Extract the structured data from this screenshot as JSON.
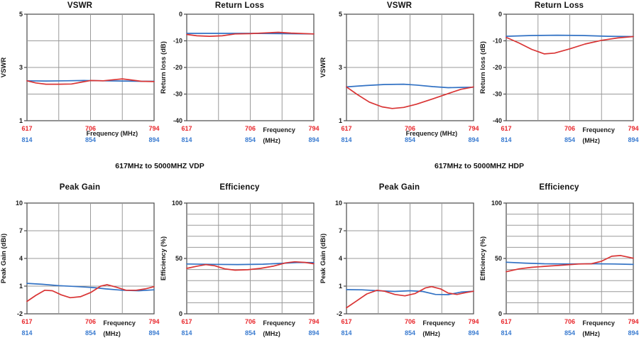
{
  "figure": {
    "description_labels": []
  },
  "captions": [
    "617MHz to 5000MHZ VDP",
    "617MHz to 5000MHZ HDP"
  ],
  "colors": {
    "red_series": "#d93434",
    "blue_series": "#3272c4",
    "red_tick_label": "#e8262b",
    "blue_tick_label": "#3a7bd0",
    "grid": "#9a9a9a",
    "axis_border": "#4a4a4a",
    "text": "#1b1b1b"
  },
  "x_axis": {
    "red_ticks": [
      "617",
      "706",
      "794"
    ],
    "blue_ticks": [
      "814",
      "854",
      "894"
    ]
  },
  "chart_data": [
    {
      "type": "line",
      "slug": "vswr-vdp",
      "title": "VSWR",
      "ylabel": "VSWR",
      "ylim": [
        1,
        5
      ],
      "yticks": [
        1,
        3,
        5
      ],
      "ygrid_step": 1,
      "grid": true,
      "legend": "none",
      "xlabel_lines": [
        "Frequency (MHz)"
      ],
      "series": [
        {
          "id": "blue",
          "points": [
            [
              0,
              2.5
            ],
            [
              0.15,
              2.49
            ],
            [
              0.3,
              2.5
            ],
            [
              0.45,
              2.51
            ],
            [
              0.6,
              2.5
            ],
            [
              0.75,
              2.49
            ],
            [
              0.9,
              2.48
            ],
            [
              1,
              2.48
            ]
          ]
        },
        {
          "id": "red",
          "points": [
            [
              0,
              2.5
            ],
            [
              0.07,
              2.42
            ],
            [
              0.15,
              2.37
            ],
            [
              0.25,
              2.37
            ],
            [
              0.35,
              2.38
            ],
            [
              0.42,
              2.44
            ],
            [
              0.5,
              2.51
            ],
            [
              0.6,
              2.5
            ],
            [
              0.68,
              2.54
            ],
            [
              0.75,
              2.57
            ],
            [
              0.82,
              2.53
            ],
            [
              0.9,
              2.48
            ],
            [
              1,
              2.47
            ]
          ]
        }
      ]
    },
    {
      "type": "line",
      "slug": "return-loss-vdp",
      "title": "Return Loss",
      "ylabel": "Return loss (dB)",
      "ylim": [
        -40,
        0
      ],
      "yticks": [
        0,
        -10,
        -20,
        -30,
        -40
      ],
      "ygrid_step": 10,
      "grid": true,
      "legend": "none",
      "xlabel_lines": [
        "Frequency",
        "(MHz)"
      ],
      "series": [
        {
          "id": "blue",
          "points": [
            [
              0,
              -7.2
            ],
            [
              0.25,
              -7.2
            ],
            [
              0.5,
              -7.2
            ],
            [
              0.75,
              -7.3
            ],
            [
              1,
              -7.4
            ]
          ]
        },
        {
          "id": "red",
          "points": [
            [
              0,
              -7.6
            ],
            [
              0.08,
              -8.1
            ],
            [
              0.18,
              -8.3
            ],
            [
              0.28,
              -8.1
            ],
            [
              0.38,
              -7.4
            ],
            [
              0.5,
              -7.3
            ],
            [
              0.62,
              -7.0
            ],
            [
              0.72,
              -6.8
            ],
            [
              0.82,
              -7.1
            ],
            [
              1,
              -7.4
            ]
          ]
        }
      ]
    },
    {
      "type": "line",
      "slug": "vswr-hdp",
      "title": "VSWR",
      "ylabel": "VSWR",
      "ylim": [
        1,
        5
      ],
      "yticks": [
        1,
        3,
        5
      ],
      "ygrid_step": 1,
      "grid": true,
      "legend": "none",
      "xlabel_lines": [
        "Frequency (MHz)"
      ],
      "series": [
        {
          "id": "blue",
          "points": [
            [
              0,
              2.27
            ],
            [
              0.15,
              2.32
            ],
            [
              0.3,
              2.36
            ],
            [
              0.45,
              2.37
            ],
            [
              0.55,
              2.34
            ],
            [
              0.68,
              2.28
            ],
            [
              0.8,
              2.24
            ],
            [
              0.9,
              2.25
            ],
            [
              1,
              2.26
            ]
          ]
        },
        {
          "id": "red",
          "points": [
            [
              0,
              2.27
            ],
            [
              0.08,
              2.0
            ],
            [
              0.18,
              1.7
            ],
            [
              0.28,
              1.52
            ],
            [
              0.36,
              1.46
            ],
            [
              0.45,
              1.5
            ],
            [
              0.55,
              1.62
            ],
            [
              0.68,
              1.82
            ],
            [
              0.8,
              2.02
            ],
            [
              0.9,
              2.18
            ],
            [
              1,
              2.27
            ]
          ]
        }
      ]
    },
    {
      "type": "line",
      "slug": "return-loss-hdp",
      "title": "Return Loss",
      "ylabel": "Return loss (dB)",
      "ylim": [
        -40,
        0
      ],
      "yticks": [
        0,
        -10,
        -20,
        -30,
        -40
      ],
      "ygrid_step": 10,
      "grid": true,
      "legend": "none",
      "xlabel_lines": [
        "Frequency",
        "(MHz)"
      ],
      "series": [
        {
          "id": "blue",
          "points": [
            [
              0,
              -8.3
            ],
            [
              0.2,
              -8.0
            ],
            [
              0.4,
              -7.9
            ],
            [
              0.6,
              -8.0
            ],
            [
              0.8,
              -8.3
            ],
            [
              1,
              -8.4
            ]
          ]
        },
        {
          "id": "red",
          "points": [
            [
              0,
              -8.7
            ],
            [
              0.1,
              -10.8
            ],
            [
              0.2,
              -13.2
            ],
            [
              0.3,
              -14.9
            ],
            [
              0.38,
              -14.6
            ],
            [
              0.5,
              -13.0
            ],
            [
              0.62,
              -11.2
            ],
            [
              0.75,
              -9.8
            ],
            [
              0.88,
              -8.9
            ],
            [
              1,
              -8.4
            ]
          ]
        }
      ]
    },
    {
      "type": "line",
      "slug": "peak-gain-vdp",
      "title": "Peak Gain",
      "ylabel": "Peak Gain (dBi)",
      "ylim": [
        -2,
        10
      ],
      "yticks": [
        -2,
        1,
        4,
        7,
        10
      ],
      "ygrid_step": 3,
      "grid": true,
      "legend": "none",
      "xlabel_lines": [
        "Frequency",
        "(MHz)"
      ],
      "series": [
        {
          "id": "blue",
          "points": [
            [
              0,
              1.3
            ],
            [
              0.12,
              1.2
            ],
            [
              0.25,
              1.05
            ],
            [
              0.4,
              0.95
            ],
            [
              0.52,
              0.85
            ],
            [
              0.62,
              0.7
            ],
            [
              0.75,
              0.55
            ],
            [
              0.88,
              0.5
            ],
            [
              1,
              0.6
            ]
          ]
        },
        {
          "id": "red",
          "points": [
            [
              0,
              -0.65
            ],
            [
              0.07,
              0.0
            ],
            [
              0.14,
              0.55
            ],
            [
              0.2,
              0.5
            ],
            [
              0.27,
              0.05
            ],
            [
              0.34,
              -0.25
            ],
            [
              0.42,
              -0.15
            ],
            [
              0.5,
              0.3
            ],
            [
              0.58,
              1.0
            ],
            [
              0.63,
              1.15
            ],
            [
              0.7,
              0.9
            ],
            [
              0.78,
              0.55
            ],
            [
              0.86,
              0.55
            ],
            [
              0.93,
              0.7
            ],
            [
              1,
              0.95
            ]
          ]
        }
      ]
    },
    {
      "type": "line",
      "slug": "efficiency-vdp",
      "title": "Efficiency",
      "ylabel": "Efficiency (%)",
      "ylim": [
        0,
        100
      ],
      "yticks": [
        0,
        50,
        100
      ],
      "ygrid_step": 10,
      "grid": true,
      "legend": "none",
      "xlabel_lines": [
        "Frequency",
        "(MHz)"
      ],
      "series": [
        {
          "id": "blue",
          "points": [
            [
              0,
              45
            ],
            [
              0.2,
              44.7
            ],
            [
              0.4,
              44.5
            ],
            [
              0.6,
              44.8
            ],
            [
              0.75,
              45.6
            ],
            [
              0.88,
              46.4
            ],
            [
              1,
              46.3
            ]
          ]
        },
        {
          "id": "red",
          "points": [
            [
              0,
              41
            ],
            [
              0.08,
              43
            ],
            [
              0.15,
              44.4
            ],
            [
              0.22,
              43.4
            ],
            [
              0.3,
              40.6
            ],
            [
              0.38,
              39.4
            ],
            [
              0.48,
              39.8
            ],
            [
              0.58,
              41
            ],
            [
              0.68,
              43
            ],
            [
              0.78,
              46
            ],
            [
              0.85,
              47
            ],
            [
              0.93,
              46.4
            ],
            [
              1,
              45.2
            ]
          ]
        }
      ]
    },
    {
      "type": "line",
      "slug": "peak-gain-hdp",
      "title": "Peak Gain",
      "ylabel": "Peak Gain (dBi)",
      "ylim": [
        -2,
        10
      ],
      "yticks": [
        -2,
        1,
        4,
        7,
        10
      ],
      "ygrid_step": 3,
      "grid": true,
      "legend": "none",
      "xlabel_lines": [
        "Frequency",
        "(MHz)"
      ],
      "series": [
        {
          "id": "blue",
          "points": [
            [
              0,
              0.62
            ],
            [
              0.12,
              0.6
            ],
            [
              0.25,
              0.5
            ],
            [
              0.38,
              0.42
            ],
            [
              0.5,
              0.5
            ],
            [
              0.6,
              0.42
            ],
            [
              0.7,
              0.1
            ],
            [
              0.8,
              0.08
            ],
            [
              0.9,
              0.35
            ],
            [
              1,
              0.45
            ]
          ]
        },
        {
          "id": "red",
          "points": [
            [
              0,
              -1.35
            ],
            [
              0.08,
              -0.6
            ],
            [
              0.16,
              0.15
            ],
            [
              0.24,
              0.55
            ],
            [
              0.3,
              0.45
            ],
            [
              0.38,
              0.1
            ],
            [
              0.46,
              -0.05
            ],
            [
              0.54,
              0.2
            ],
            [
              0.62,
              0.8
            ],
            [
              0.67,
              0.95
            ],
            [
              0.74,
              0.7
            ],
            [
              0.8,
              0.25
            ],
            [
              0.87,
              0.1
            ],
            [
              0.94,
              0.3
            ],
            [
              1,
              0.45
            ]
          ]
        }
      ]
    },
    {
      "type": "line",
      "slug": "efficiency-hdp",
      "title": "Efficiency",
      "ylabel": "Efficiency (%)",
      "ylim": [
        0,
        100
      ],
      "yticks": [
        0,
        50,
        100
      ],
      "ygrid_step": 10,
      "grid": true,
      "legend": "none",
      "xlabel_lines": [
        "Frequency",
        "(MHz)"
      ],
      "series": [
        {
          "id": "blue",
          "points": [
            [
              0,
              46.6
            ],
            [
              0.15,
              45.8
            ],
            [
              0.3,
              45.2
            ],
            [
              0.5,
              45.0
            ],
            [
              0.7,
              45.2
            ],
            [
              0.85,
              45.0
            ],
            [
              1,
              44.6
            ]
          ]
        },
        {
          "id": "red",
          "points": [
            [
              0,
              38
            ],
            [
              0.1,
              40.6
            ],
            [
              0.2,
              42
            ],
            [
              0.32,
              43
            ],
            [
              0.45,
              44
            ],
            [
              0.57,
              45
            ],
            [
              0.67,
              45.2
            ],
            [
              0.75,
              47.5
            ],
            [
              0.83,
              52
            ],
            [
              0.9,
              52.6
            ],
            [
              1,
              50.2
            ]
          ]
        }
      ]
    }
  ]
}
